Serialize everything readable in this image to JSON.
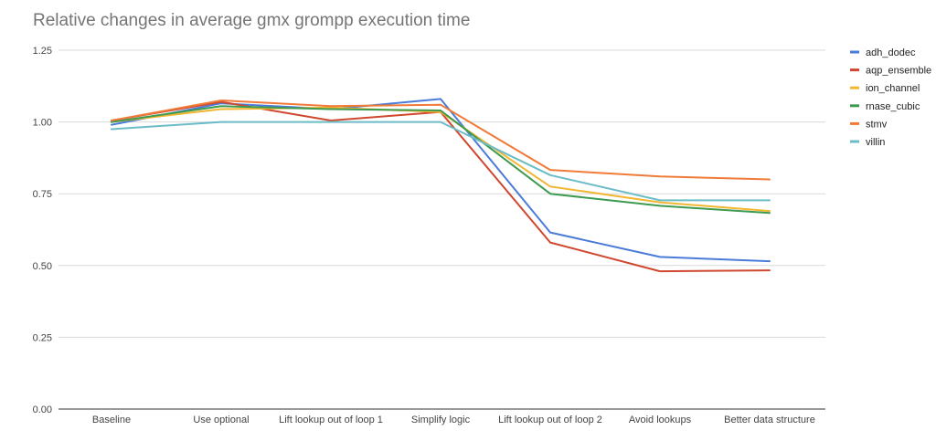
{
  "chart_data": {
    "type": "line",
    "title": "Relative changes in average gmx grompp execution time",
    "xlabel": "",
    "ylabel": "",
    "ylim": [
      0,
      1.25
    ],
    "y_ticks": [
      "0.00",
      "0.25",
      "0.50",
      "0.75",
      "1.00",
      "1.25"
    ],
    "y_tick_values": [
      0,
      0.25,
      0.5,
      0.75,
      1.0,
      1.25
    ],
    "categories": [
      "Baseline",
      "Use optional",
      "Lift lookup out of loop 1",
      "Simplify logic",
      "Lift lookup out of loop 2",
      "Avoid lookups",
      "Better data structure"
    ],
    "grid": true,
    "legend_position": "right",
    "series": [
      {
        "name": "adh_dodec",
        "color": "#4a7bd8",
        "values": [
          0.99,
          1.065,
          1.045,
          1.08,
          0.615,
          0.53,
          0.515
        ]
      },
      {
        "name": "aqp_ensemble",
        "color": "#d0472f",
        "values": [
          1.005,
          1.07,
          1.005,
          1.035,
          0.58,
          0.48,
          0.483
        ]
      },
      {
        "name": "ion_channel",
        "color": "#f2b632",
        "values": [
          1.0,
          1.045,
          1.05,
          1.035,
          0.775,
          0.72,
          0.69
        ]
      },
      {
        "name": "rnase_cubic",
        "color": "#3d9a4f",
        "values": [
          1.0,
          1.055,
          1.045,
          1.04,
          0.75,
          0.708,
          0.683
        ]
      },
      {
        "name": "stmv",
        "color": "#f07a37",
        "values": [
          1.005,
          1.075,
          1.055,
          1.06,
          0.833,
          0.81,
          0.8
        ]
      },
      {
        "name": "villin",
        "color": "#6bbcc7",
        "values": [
          0.975,
          1.0,
          1.0,
          1.0,
          0.815,
          0.727,
          0.727
        ]
      }
    ]
  }
}
